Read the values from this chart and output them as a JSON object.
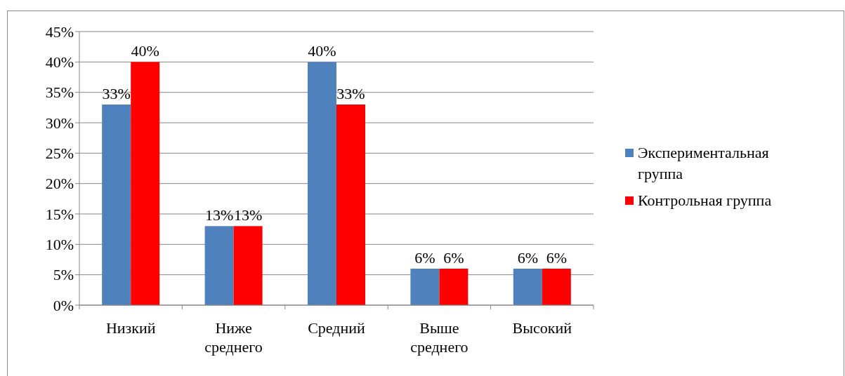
{
  "chart_data": {
    "type": "bar",
    "categories": [
      "Низкий",
      "Ниже среднего",
      "Средний",
      "Выше среднего",
      "Высокий"
    ],
    "series": [
      {
        "name": "Экспериментальная группа",
        "color": "#4f81bd",
        "values": [
          33,
          13,
          40,
          6,
          6
        ],
        "value_labels": [
          "33%",
          "13%",
          "40%",
          "6%",
          "6%"
        ]
      },
      {
        "name": "Контрольная группа",
        "color": "#ff0000",
        "values": [
          40,
          13,
          33,
          6,
          6
        ],
        "value_labels": [
          "40%",
          "13%",
          "33%",
          "6%",
          "6%"
        ]
      }
    ],
    "ylim": [
      0,
      45
    ],
    "yticks": [
      {
        "value": 0,
        "label": "0%"
      },
      {
        "value": 5,
        "label": "5%"
      },
      {
        "value": 10,
        "label": "10%"
      },
      {
        "value": 15,
        "label": "15%"
      },
      {
        "value": 20,
        "label": "20%"
      },
      {
        "value": 25,
        "label": "25%"
      },
      {
        "value": 30,
        "label": "30%"
      },
      {
        "value": 35,
        "label": "35%"
      },
      {
        "value": 40,
        "label": "40%"
      },
      {
        "value": 45,
        "label": "45%"
      }
    ],
    "grid": "y",
    "legend": "right"
  }
}
